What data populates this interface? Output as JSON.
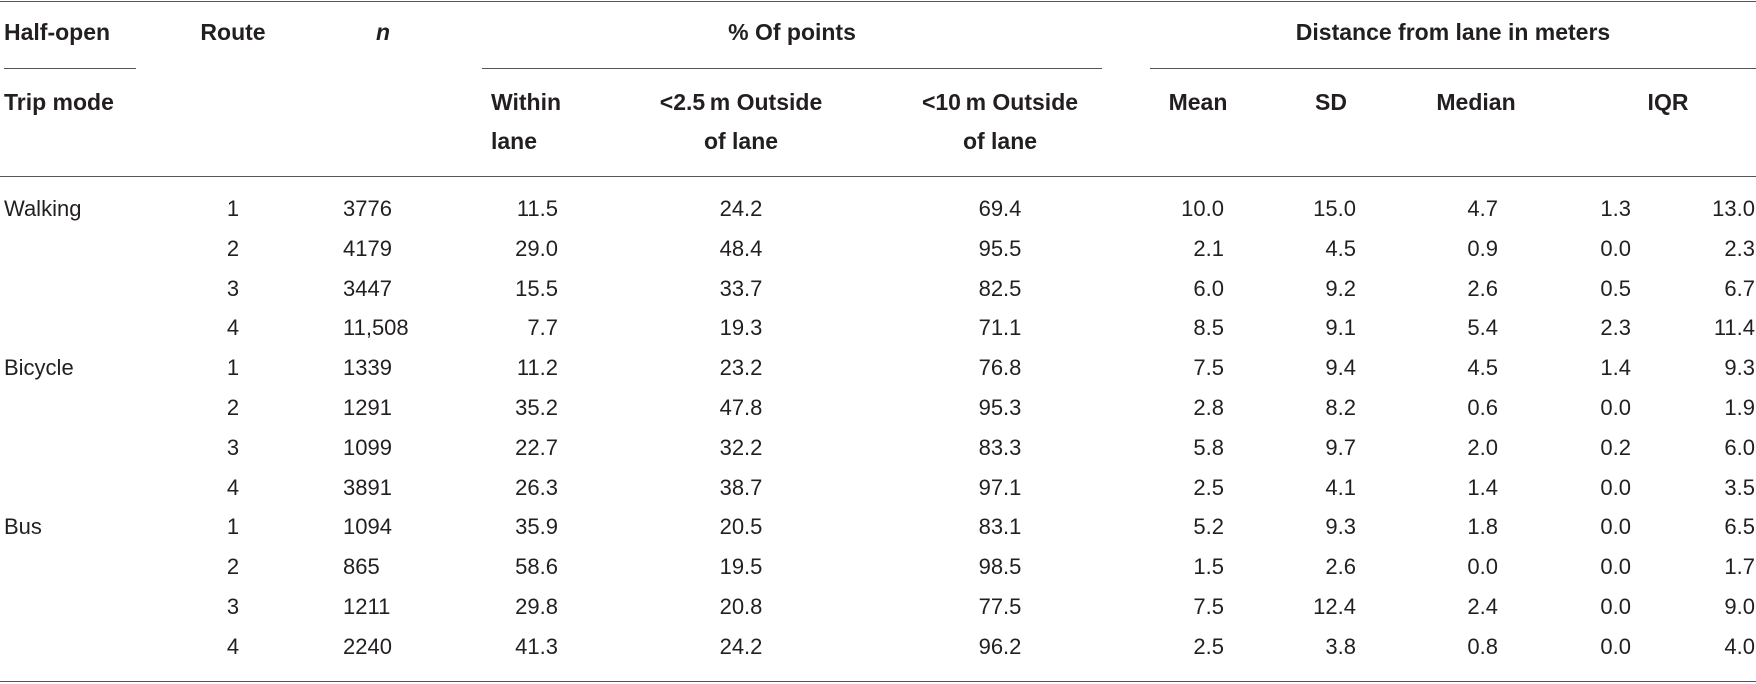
{
  "header": {
    "half_open": "Half-open",
    "trip_mode": "Trip mode",
    "route": "Route",
    "n": "n",
    "pct_points": "% Of points",
    "distance": "Distance from lane in meters",
    "within_1": "Within",
    "within_2": "lane",
    "lt25_1": "<2.5 m Outside",
    "lt25_2": "of lane",
    "lt10_1": "<10 m Outside",
    "lt10_2": "of lane",
    "mean": "Mean",
    "sd": "SD",
    "median": "Median",
    "iqr": "IQR"
  },
  "rows": [
    {
      "mode": "Walking",
      "route": "1",
      "n": "3776",
      "within": "11.5",
      "lt25": "24.2",
      "lt10": "69.4",
      "mean": "10.0",
      "sd": "15.0",
      "median": "4.7",
      "iqr_lo": "1.3",
      "iqr_hi": "13.0"
    },
    {
      "mode": "",
      "route": "2",
      "n": "4179",
      "within": "29.0",
      "lt25": "48.4",
      "lt10": "95.5",
      "mean": "2.1",
      "sd": "4.5",
      "median": "0.9",
      "iqr_lo": "0.0",
      "iqr_hi": "2.3"
    },
    {
      "mode": "",
      "route": "3",
      "n": "3447",
      "within": "15.5",
      "lt25": "33.7",
      "lt10": "82.5",
      "mean": "6.0",
      "sd": "9.2",
      "median": "2.6",
      "iqr_lo": "0.5",
      "iqr_hi": "6.7"
    },
    {
      "mode": "",
      "route": "4",
      "n": "11,508",
      "within": "7.7",
      "lt25": "19.3",
      "lt10": "71.1",
      "mean": "8.5",
      "sd": "9.1",
      "median": "5.4",
      "iqr_lo": "2.3",
      "iqr_hi": "11.4"
    },
    {
      "mode": "Bicycle",
      "route": "1",
      "n": "1339",
      "within": "11.2",
      "lt25": "23.2",
      "lt10": "76.8",
      "mean": "7.5",
      "sd": "9.4",
      "median": "4.5",
      "iqr_lo": "1.4",
      "iqr_hi": "9.3"
    },
    {
      "mode": "",
      "route": "2",
      "n": "1291",
      "within": "35.2",
      "lt25": "47.8",
      "lt10": "95.3",
      "mean": "2.8",
      "sd": "8.2",
      "median": "0.6",
      "iqr_lo": "0.0",
      "iqr_hi": "1.9"
    },
    {
      "mode": "",
      "route": "3",
      "n": "1099",
      "within": "22.7",
      "lt25": "32.2",
      "lt10": "83.3",
      "mean": "5.8",
      "sd": "9.7",
      "median": "2.0",
      "iqr_lo": "0.2",
      "iqr_hi": "6.0"
    },
    {
      "mode": "",
      "route": "4",
      "n": "3891",
      "within": "26.3",
      "lt25": "38.7",
      "lt10": "97.1",
      "mean": "2.5",
      "sd": "4.1",
      "median": "1.4",
      "iqr_lo": "0.0",
      "iqr_hi": "3.5"
    },
    {
      "mode": "Bus",
      "route": "1",
      "n": "1094",
      "within": "35.9",
      "lt25": "20.5",
      "lt10": "83.1",
      "mean": "5.2",
      "sd": "9.3",
      "median": "1.8",
      "iqr_lo": "0.0",
      "iqr_hi": "6.5"
    },
    {
      "mode": "",
      "route": "2",
      "n": "865",
      "within": "58.6",
      "lt25": "19.5",
      "lt10": "98.5",
      "mean": "1.5",
      "sd": "2.6",
      "median": "0.0",
      "iqr_lo": "0.0",
      "iqr_hi": "1.7"
    },
    {
      "mode": "",
      "route": "3",
      "n": "1211",
      "within": "29.8",
      "lt25": "20.8",
      "lt10": "77.5",
      "mean": "7.5",
      "sd": "12.4",
      "median": "2.4",
      "iqr_lo": "0.0",
      "iqr_hi": "9.0"
    },
    {
      "mode": "",
      "route": "4",
      "n": "2240",
      "within": "41.3",
      "lt25": "24.2",
      "lt10": "96.2",
      "mean": "2.5",
      "sd": "3.8",
      "median": "0.8",
      "iqr_lo": "0.0",
      "iqr_hi": "4.0"
    }
  ]
}
